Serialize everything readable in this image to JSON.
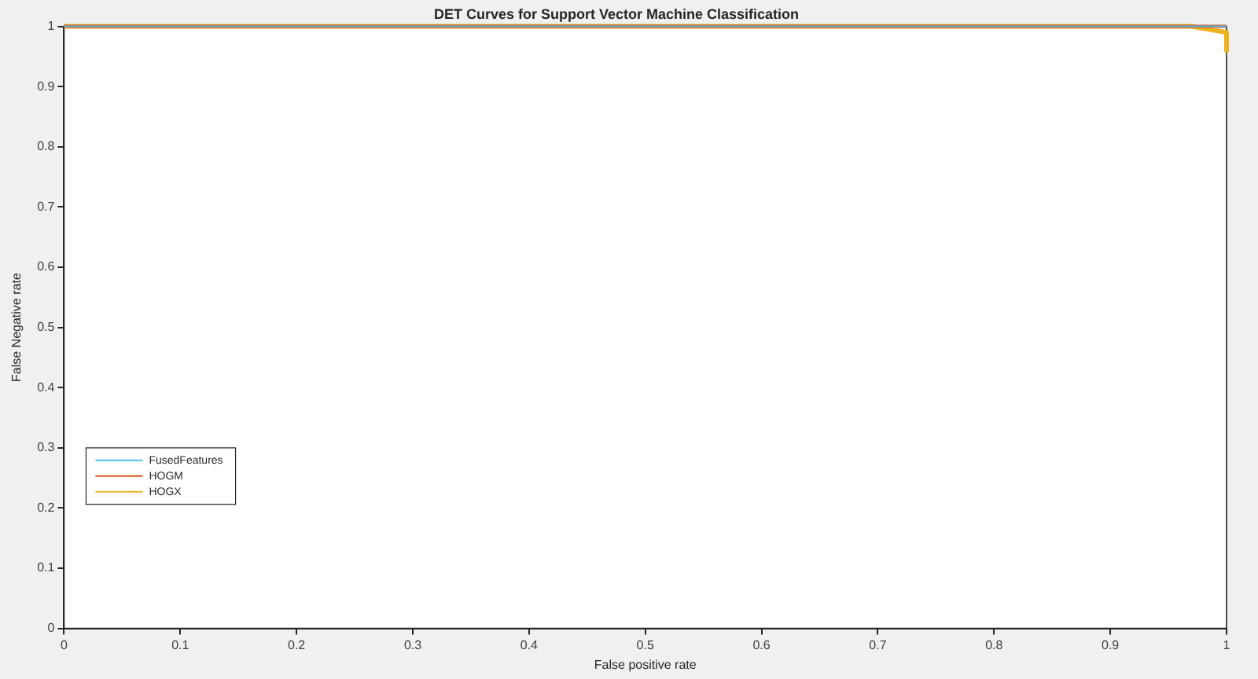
{
  "chart_data": {
    "type": "line",
    "title": "DET Curves for Support Vector Machine Classification",
    "xlabel": "False positive rate",
    "ylabel": "False Negative rate",
    "xlim": [
      0,
      1
    ],
    "ylim": [
      0,
      1
    ],
    "xticks": [
      0,
      0.1,
      0.2,
      0.3,
      0.4,
      0.5,
      0.6,
      0.7,
      0.8,
      0.9,
      1
    ],
    "yticks": [
      0,
      0.1,
      0.2,
      0.3,
      0.4,
      0.5,
      0.6,
      0.7,
      0.8,
      0.9,
      1
    ],
    "legend": "bottom left",
    "grid": false,
    "marker": "none",
    "line_style": "solid",
    "series": [
      {
        "name": "FusedFeatures",
        "color": "#4dbeee",
        "x": [
          0,
          1
        ],
        "values": [
          1,
          1
        ]
      },
      {
        "name": "HOGM",
        "color": "#d95319",
        "x": [
          0,
          1
        ],
        "values": [
          1,
          1
        ]
      },
      {
        "name": "HOGX",
        "color": "#edb120",
        "x": [
          0,
          0.97,
          1,
          1
        ],
        "values": [
          1,
          1,
          0.99,
          0.96
        ]
      }
    ]
  }
}
